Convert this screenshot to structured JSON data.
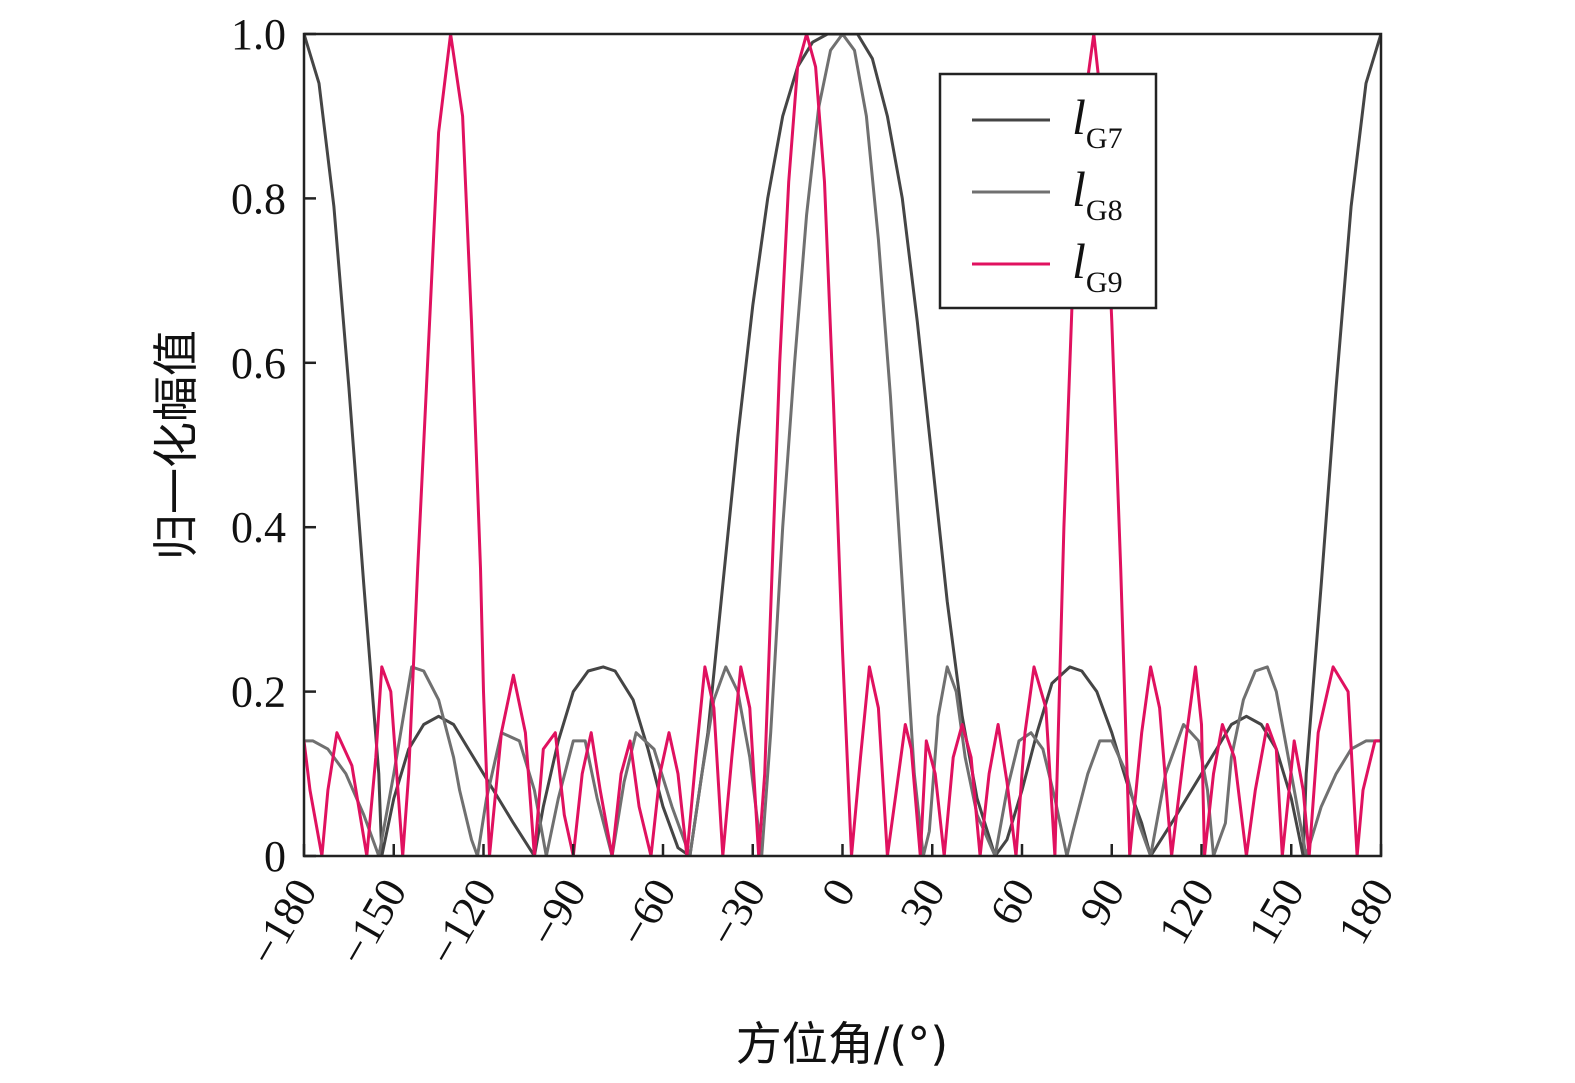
{
  "chart_data": {
    "type": "line",
    "title": "",
    "xlabel": "方位角/(°)",
    "ylabel": "归一化幅值",
    "xlim": [
      -180,
      180
    ],
    "ylim": [
      0,
      1
    ],
    "xticks": [
      -180,
      -150,
      -120,
      -90,
      -60,
      -30,
      0,
      30,
      60,
      90,
      120,
      150,
      180
    ],
    "xtick_labels": [
      "−180",
      "−150",
      "−120",
      "−90",
      "−60",
      "−30",
      "0",
      "30",
      "60",
      "90",
      "120",
      "150",
      "180"
    ],
    "yticks": [
      0,
      0.2,
      0.4,
      0.6,
      0.8,
      1.0
    ],
    "ytick_labels": [
      "0",
      "0.2",
      "0.4",
      "0.6",
      "0.8",
      "1.0"
    ],
    "grid": false,
    "legend_position": "top-right",
    "series": [
      {
        "name": "lG7",
        "name_main": "l",
        "name_sub": "G7",
        "color": "#454545",
        "x": [
          -180,
          -175,
          -170,
          -165,
          -160,
          -155,
          -154,
          -150,
          -145,
          -140,
          -135,
          -130,
          -125,
          -120,
          -115,
          -110,
          -103,
          -100,
          -95,
          -90,
          -85,
          -80,
          -76,
          -70,
          -65,
          -60,
          -55,
          -51,
          -45,
          -40,
          -35,
          -30,
          -25,
          -20,
          -15,
          -10,
          -5,
          0,
          5,
          10,
          15,
          20,
          25,
          30,
          35,
          40,
          45,
          51,
          55,
          60,
          65,
          70,
          76,
          80,
          85,
          90,
          95,
          100,
          103,
          110,
          115,
          120,
          125,
          130,
          135,
          140,
          145,
          150,
          154,
          155,
          160,
          165,
          170,
          175,
          180
        ],
        "y": [
          1.0,
          0.94,
          0.79,
          0.57,
          0.33,
          0.1,
          0.0,
          0.07,
          0.13,
          0.16,
          0.17,
          0.16,
          0.13,
          0.1,
          0.07,
          0.04,
          0.0,
          0.06,
          0.14,
          0.2,
          0.225,
          0.23,
          0.225,
          0.19,
          0.13,
          0.06,
          0.01,
          0.0,
          0.15,
          0.33,
          0.51,
          0.67,
          0.8,
          0.9,
          0.96,
          0.99,
          1.0,
          1.0,
          1.0,
          0.97,
          0.9,
          0.8,
          0.65,
          0.48,
          0.31,
          0.17,
          0.07,
          0.0,
          0.02,
          0.08,
          0.15,
          0.21,
          0.23,
          0.225,
          0.2,
          0.15,
          0.09,
          0.04,
          0.0,
          0.04,
          0.07,
          0.1,
          0.13,
          0.16,
          0.17,
          0.16,
          0.13,
          0.07,
          0.0,
          0.1,
          0.33,
          0.57,
          0.79,
          0.94,
          1.0
        ]
      },
      {
        "name": "lG8",
        "name_main": "l",
        "name_sub": "G8",
        "color": "#707070",
        "x": [
          -180,
          -177,
          -172,
          -166,
          -160,
          -155,
          -150,
          -144,
          -140,
          -135,
          -130,
          -128,
          -124,
          -122,
          -119,
          -114,
          -108,
          -103,
          -99,
          -95,
          -90,
          -86,
          -82,
          -77,
          -73,
          -69,
          -63,
          -57,
          -51,
          -47,
          -43,
          -39,
          -35,
          -31,
          -27,
          -24,
          -20,
          -16,
          -12,
          -8,
          -4,
          0,
          4,
          8,
          12,
          16,
          20,
          24,
          27,
          29,
          32,
          35,
          38,
          41,
          45,
          51,
          55,
          59,
          63,
          67,
          71,
          75,
          77,
          82,
          86,
          90,
          95,
          99,
          103,
          108,
          114,
          119,
          122,
          124,
          128,
          130,
          134,
          138,
          142,
          145,
          150,
          155,
          160,
          165,
          170,
          175,
          180
        ],
        "y": [
          0.14,
          0.14,
          0.13,
          0.1,
          0.05,
          0.0,
          0.1,
          0.23,
          0.225,
          0.19,
          0.12,
          0.08,
          0.02,
          0.0,
          0.07,
          0.15,
          0.14,
          0.08,
          0.0,
          0.07,
          0.14,
          0.14,
          0.07,
          0.0,
          0.09,
          0.15,
          0.13,
          0.06,
          0.0,
          0.1,
          0.19,
          0.23,
          0.2,
          0.12,
          0.0,
          0.15,
          0.4,
          0.6,
          0.78,
          0.91,
          0.98,
          1.0,
          0.98,
          0.9,
          0.75,
          0.56,
          0.33,
          0.1,
          0.0,
          0.03,
          0.17,
          0.23,
          0.2,
          0.12,
          0.05,
          0.0,
          0.08,
          0.14,
          0.15,
          0.13,
          0.07,
          0.0,
          0.03,
          0.1,
          0.14,
          0.14,
          0.1,
          0.04,
          0.0,
          0.1,
          0.16,
          0.14,
          0.08,
          0.0,
          0.04,
          0.12,
          0.19,
          0.225,
          0.23,
          0.2,
          0.1,
          0.0,
          0.06,
          0.1,
          0.13,
          0.14,
          0.14
        ]
      },
      {
        "name": "lG9",
        "name_main": "l",
        "name_sub": "G9",
        "color": "#e0115f",
        "x": [
          -180,
          -178,
          -174,
          -172,
          -169,
          -164,
          -159,
          -156,
          -154,
          -151,
          -147,
          -145,
          -142,
          -138,
          -135,
          -131,
          -127,
          -124,
          -121,
          -120,
          -118,
          -114,
          -110,
          -106,
          -103,
          -100,
          -96,
          -93,
          -90,
          -87,
          -84,
          -81,
          -77,
          -74,
          -71,
          -68,
          -64,
          -61,
          -58,
          -55,
          -52,
          -49,
          -46,
          -43,
          -40,
          -37,
          -34,
          -31,
          -28,
          -26,
          -23,
          -21,
          -18,
          -15,
          -12,
          -9,
          -6,
          -3,
          0,
          3,
          6,
          9,
          12,
          15,
          18,
          21,
          23,
          26,
          28,
          31,
          34,
          37,
          40,
          43,
          46,
          49,
          52,
          55,
          58,
          61,
          64,
          68,
          71,
          74,
          77,
          81,
          84,
          87,
          90,
          93,
          96,
          100,
          103,
          106,
          110,
          114,
          118,
          120,
          121,
          124,
          127,
          131,
          135,
          138,
          142,
          145,
          147,
          151,
          154,
          156,
          159,
          164,
          169,
          172,
          174,
          178,
          180
        ],
        "y": [
          0.14,
          0.08,
          0.0,
          0.08,
          0.15,
          0.11,
          0.0,
          0.12,
          0.23,
          0.2,
          0.0,
          0.1,
          0.35,
          0.65,
          0.88,
          1.0,
          0.9,
          0.65,
          0.35,
          0.2,
          0.0,
          0.15,
          0.22,
          0.15,
          0.0,
          0.13,
          0.15,
          0.05,
          0.0,
          0.1,
          0.15,
          0.08,
          0.0,
          0.1,
          0.14,
          0.06,
          0.0,
          0.1,
          0.15,
          0.1,
          0.0,
          0.12,
          0.23,
          0.18,
          0.0,
          0.12,
          0.23,
          0.18,
          0.0,
          0.1,
          0.4,
          0.6,
          0.82,
          0.96,
          1.0,
          0.96,
          0.82,
          0.55,
          0.25,
          0.0,
          0.12,
          0.23,
          0.18,
          0.0,
          0.08,
          0.16,
          0.13,
          0.0,
          0.14,
          0.1,
          0.0,
          0.12,
          0.16,
          0.12,
          0.0,
          0.1,
          0.16,
          0.09,
          0.0,
          0.15,
          0.23,
          0.18,
          0.0,
          0.4,
          0.7,
          0.92,
          1.0,
          0.9,
          0.65,
          0.35,
          0.0,
          0.15,
          0.23,
          0.18,
          0.0,
          0.12,
          0.23,
          0.16,
          0.0,
          0.1,
          0.16,
          0.12,
          0.0,
          0.08,
          0.16,
          0.13,
          0.0,
          0.14,
          0.08,
          0.0,
          0.15,
          0.23,
          0.2,
          0.0,
          0.08,
          0.14,
          0.14
        ]
      }
    ]
  }
}
